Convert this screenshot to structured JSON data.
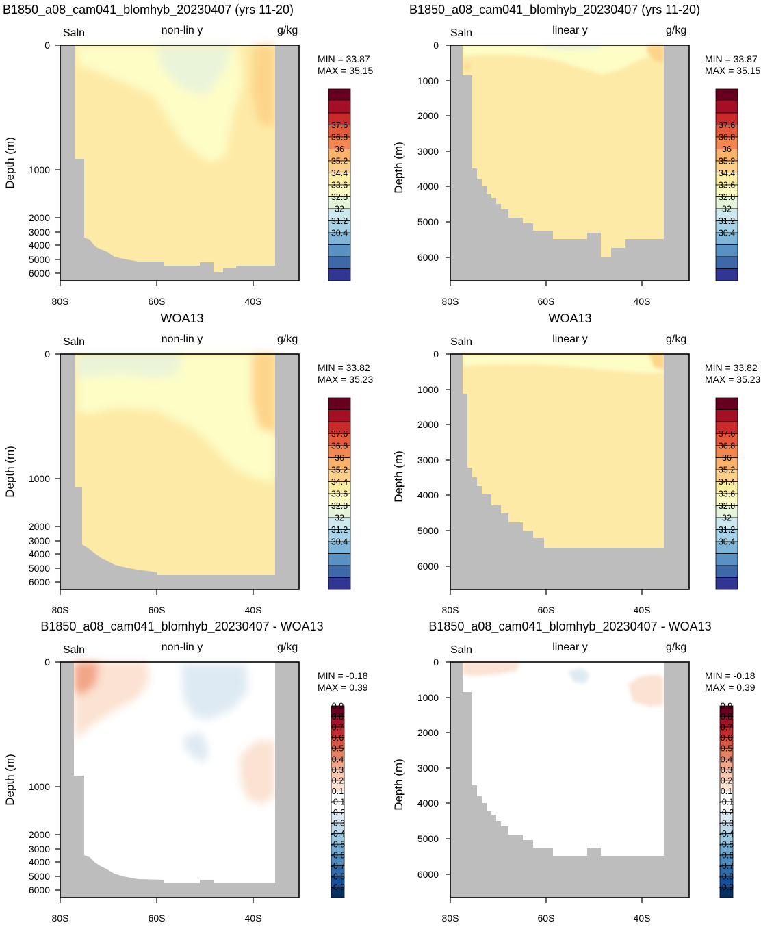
{
  "land_color": "#bdbdbd",
  "chart_data": [
    {
      "type": "heatmap",
      "title": "B1850_a08_cam041_blomhyb_20230407 (yrs 11-20)",
      "left_label": "Saln",
      "center_label": "non-lin y",
      "right_label": "g/kg",
      "ylabel": "Depth (m)",
      "x_ticks": [
        "80S",
        "60S",
        "40S"
      ],
      "y_ticks": [
        "0",
        "1000",
        "2000",
        "3000",
        "4000",
        "5000",
        "6000"
      ],
      "y_scale": "non-linear",
      "stats": {
        "min": "33.87",
        "max": "35.15"
      },
      "colorbar": "saln"
    },
    {
      "type": "heatmap",
      "title": "B1850_a08_cam041_blomhyb_20230407 (yrs 11-20)",
      "left_label": "Saln",
      "center_label": "linear y",
      "right_label": "g/kg",
      "ylabel": "Depth (m)",
      "x_ticks": [
        "80S",
        "60S",
        "40S"
      ],
      "y_ticks": [
        "0",
        "1000",
        "2000",
        "3000",
        "4000",
        "5000",
        "6000"
      ],
      "y_scale": "linear",
      "stats": {
        "min": "33.87",
        "max": "35.15"
      },
      "colorbar": "saln"
    },
    {
      "type": "heatmap",
      "title": "WOA13",
      "left_label": "Saln",
      "center_label": "non-lin y",
      "right_label": "g/kg",
      "ylabel": "Depth (m)",
      "x_ticks": [
        "80S",
        "60S",
        "40S"
      ],
      "y_ticks": [
        "0",
        "1000",
        "2000",
        "3000",
        "4000",
        "5000",
        "6000"
      ],
      "y_scale": "non-linear",
      "stats": {
        "min": "33.82",
        "max": "35.23"
      },
      "colorbar": "saln"
    },
    {
      "type": "heatmap",
      "title": "WOA13",
      "left_label": "Saln",
      "center_label": "linear y",
      "right_label": "g/kg",
      "ylabel": "Depth (m)",
      "x_ticks": [
        "80S",
        "60S",
        "40S"
      ],
      "y_ticks": [
        "0",
        "1000",
        "2000",
        "3000",
        "4000",
        "5000",
        "6000"
      ],
      "y_scale": "linear",
      "stats": {
        "min": "33.82",
        "max": "35.23"
      },
      "colorbar": "saln"
    },
    {
      "type": "heatmap",
      "title": "B1850_a08_cam041_blomhyb_20230407 - WOA13",
      "left_label": "Saln",
      "center_label": "non-lin y",
      "right_label": "g/kg",
      "ylabel": "Depth (m)",
      "x_ticks": [
        "80S",
        "60S",
        "40S"
      ],
      "y_ticks": [
        "0",
        "1000",
        "2000",
        "3000",
        "4000",
        "5000",
        "6000"
      ],
      "y_scale": "non-linear",
      "stats": {
        "min": "-0.18",
        "max": "0.39"
      },
      "colorbar": "diff"
    },
    {
      "type": "heatmap",
      "title": "B1850_a08_cam041_blomhyb_20230407 - WOA13",
      "left_label": "Saln",
      "center_label": "linear y",
      "right_label": "g/kg",
      "ylabel": "Depth (m)",
      "x_ticks": [
        "80S",
        "60S",
        "40S"
      ],
      "y_ticks": [
        "0",
        "1000",
        "2000",
        "3000",
        "4000",
        "5000",
        "6000"
      ],
      "y_scale": "linear",
      "stats": {
        "min": "-0.18",
        "max": "0.39"
      },
      "colorbar": "diff"
    }
  ],
  "colorbars": {
    "saln": {
      "colors": [
        "#67001f",
        "#a50f26",
        "#cb2a2b",
        "#e45a3c",
        "#f4874f",
        "#fbb26a",
        "#fdd089",
        "#feeea3",
        "#fefec3",
        "#e5f5da",
        "#cce9ef",
        "#a7d3e8",
        "#7eb5d8",
        "#5891c3",
        "#3d69ab",
        "#313694"
      ],
      "labels": [
        "37.6",
        "36.8",
        "36",
        "35.2",
        "34.4",
        "33.6",
        "32.8",
        "32",
        "31.2",
        "30.4"
      ]
    },
    "diff": {
      "colors": [
        "#67001f",
        "#a01326",
        "#c42b31",
        "#d65645",
        "#e58060",
        "#f2a587",
        "#f8c7ad",
        "#fbe2d2",
        "#ffffff",
        "#ffffff",
        "#deeaf3",
        "#c0d9ea",
        "#9ac6e0",
        "#6ea9d1",
        "#4889be",
        "#2c6aa9",
        "#17509a",
        "#053061"
      ],
      "labels": [
        "0.9",
        "0.8",
        "0.7",
        "0.6",
        "0.5",
        "0.4",
        "0.3",
        "0.2",
        "0.1",
        "-0.1",
        "-0.2",
        "-0.3",
        "-0.4",
        "-0.5",
        "-0.6",
        "-0.7",
        "-0.8",
        "-0.9"
      ]
    }
  }
}
